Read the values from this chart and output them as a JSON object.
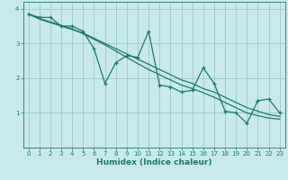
{
  "xlabel": "Humidex (Indice chaleur)",
  "ylabel": "",
  "bg_color": "#c8eaea",
  "grid_color": "#a0c8c8",
  "line_color": "#1a7a6a",
  "x_data": [
    0,
    1,
    2,
    3,
    4,
    5,
    6,
    7,
    8,
    9,
    10,
    11,
    12,
    13,
    14,
    15,
    16,
    17,
    18,
    19,
    20,
    21,
    22,
    23
  ],
  "y_jagged": [
    3.85,
    3.75,
    3.75,
    3.5,
    3.5,
    3.35,
    2.85,
    1.85,
    2.45,
    2.65,
    2.6,
    3.35,
    1.8,
    1.75,
    1.6,
    1.65,
    2.3,
    1.85,
    1.05,
    1.0,
    0.7,
    1.35,
    1.4,
    1.0
  ],
  "y_smooth1": [
    3.85,
    3.7,
    3.6,
    3.5,
    3.4,
    3.3,
    3.15,
    3.0,
    2.85,
    2.7,
    2.55,
    2.4,
    2.25,
    2.1,
    1.95,
    1.85,
    1.7,
    1.6,
    1.45,
    1.3,
    1.15,
    1.05,
    0.95,
    0.9
  ],
  "y_smooth2": [
    3.85,
    3.72,
    3.62,
    3.52,
    3.42,
    3.28,
    3.12,
    2.96,
    2.78,
    2.6,
    2.42,
    2.25,
    2.1,
    1.95,
    1.8,
    1.7,
    1.58,
    1.45,
    1.3,
    1.15,
    1.0,
    0.92,
    0.85,
    0.82
  ],
  "ylim": [
    0,
    4.2
  ],
  "xlim": [
    -0.5,
    23.5
  ],
  "yticks": [
    1,
    2,
    3,
    4
  ],
  "xticks": [
    0,
    1,
    2,
    3,
    4,
    5,
    6,
    7,
    8,
    9,
    10,
    11,
    12,
    13,
    14,
    15,
    16,
    17,
    18,
    19,
    20,
    21,
    22,
    23
  ],
  "marker_size": 3.0,
  "linewidth": 0.9,
  "tick_fontsize": 5.0,
  "xlabel_fontsize": 6.5
}
